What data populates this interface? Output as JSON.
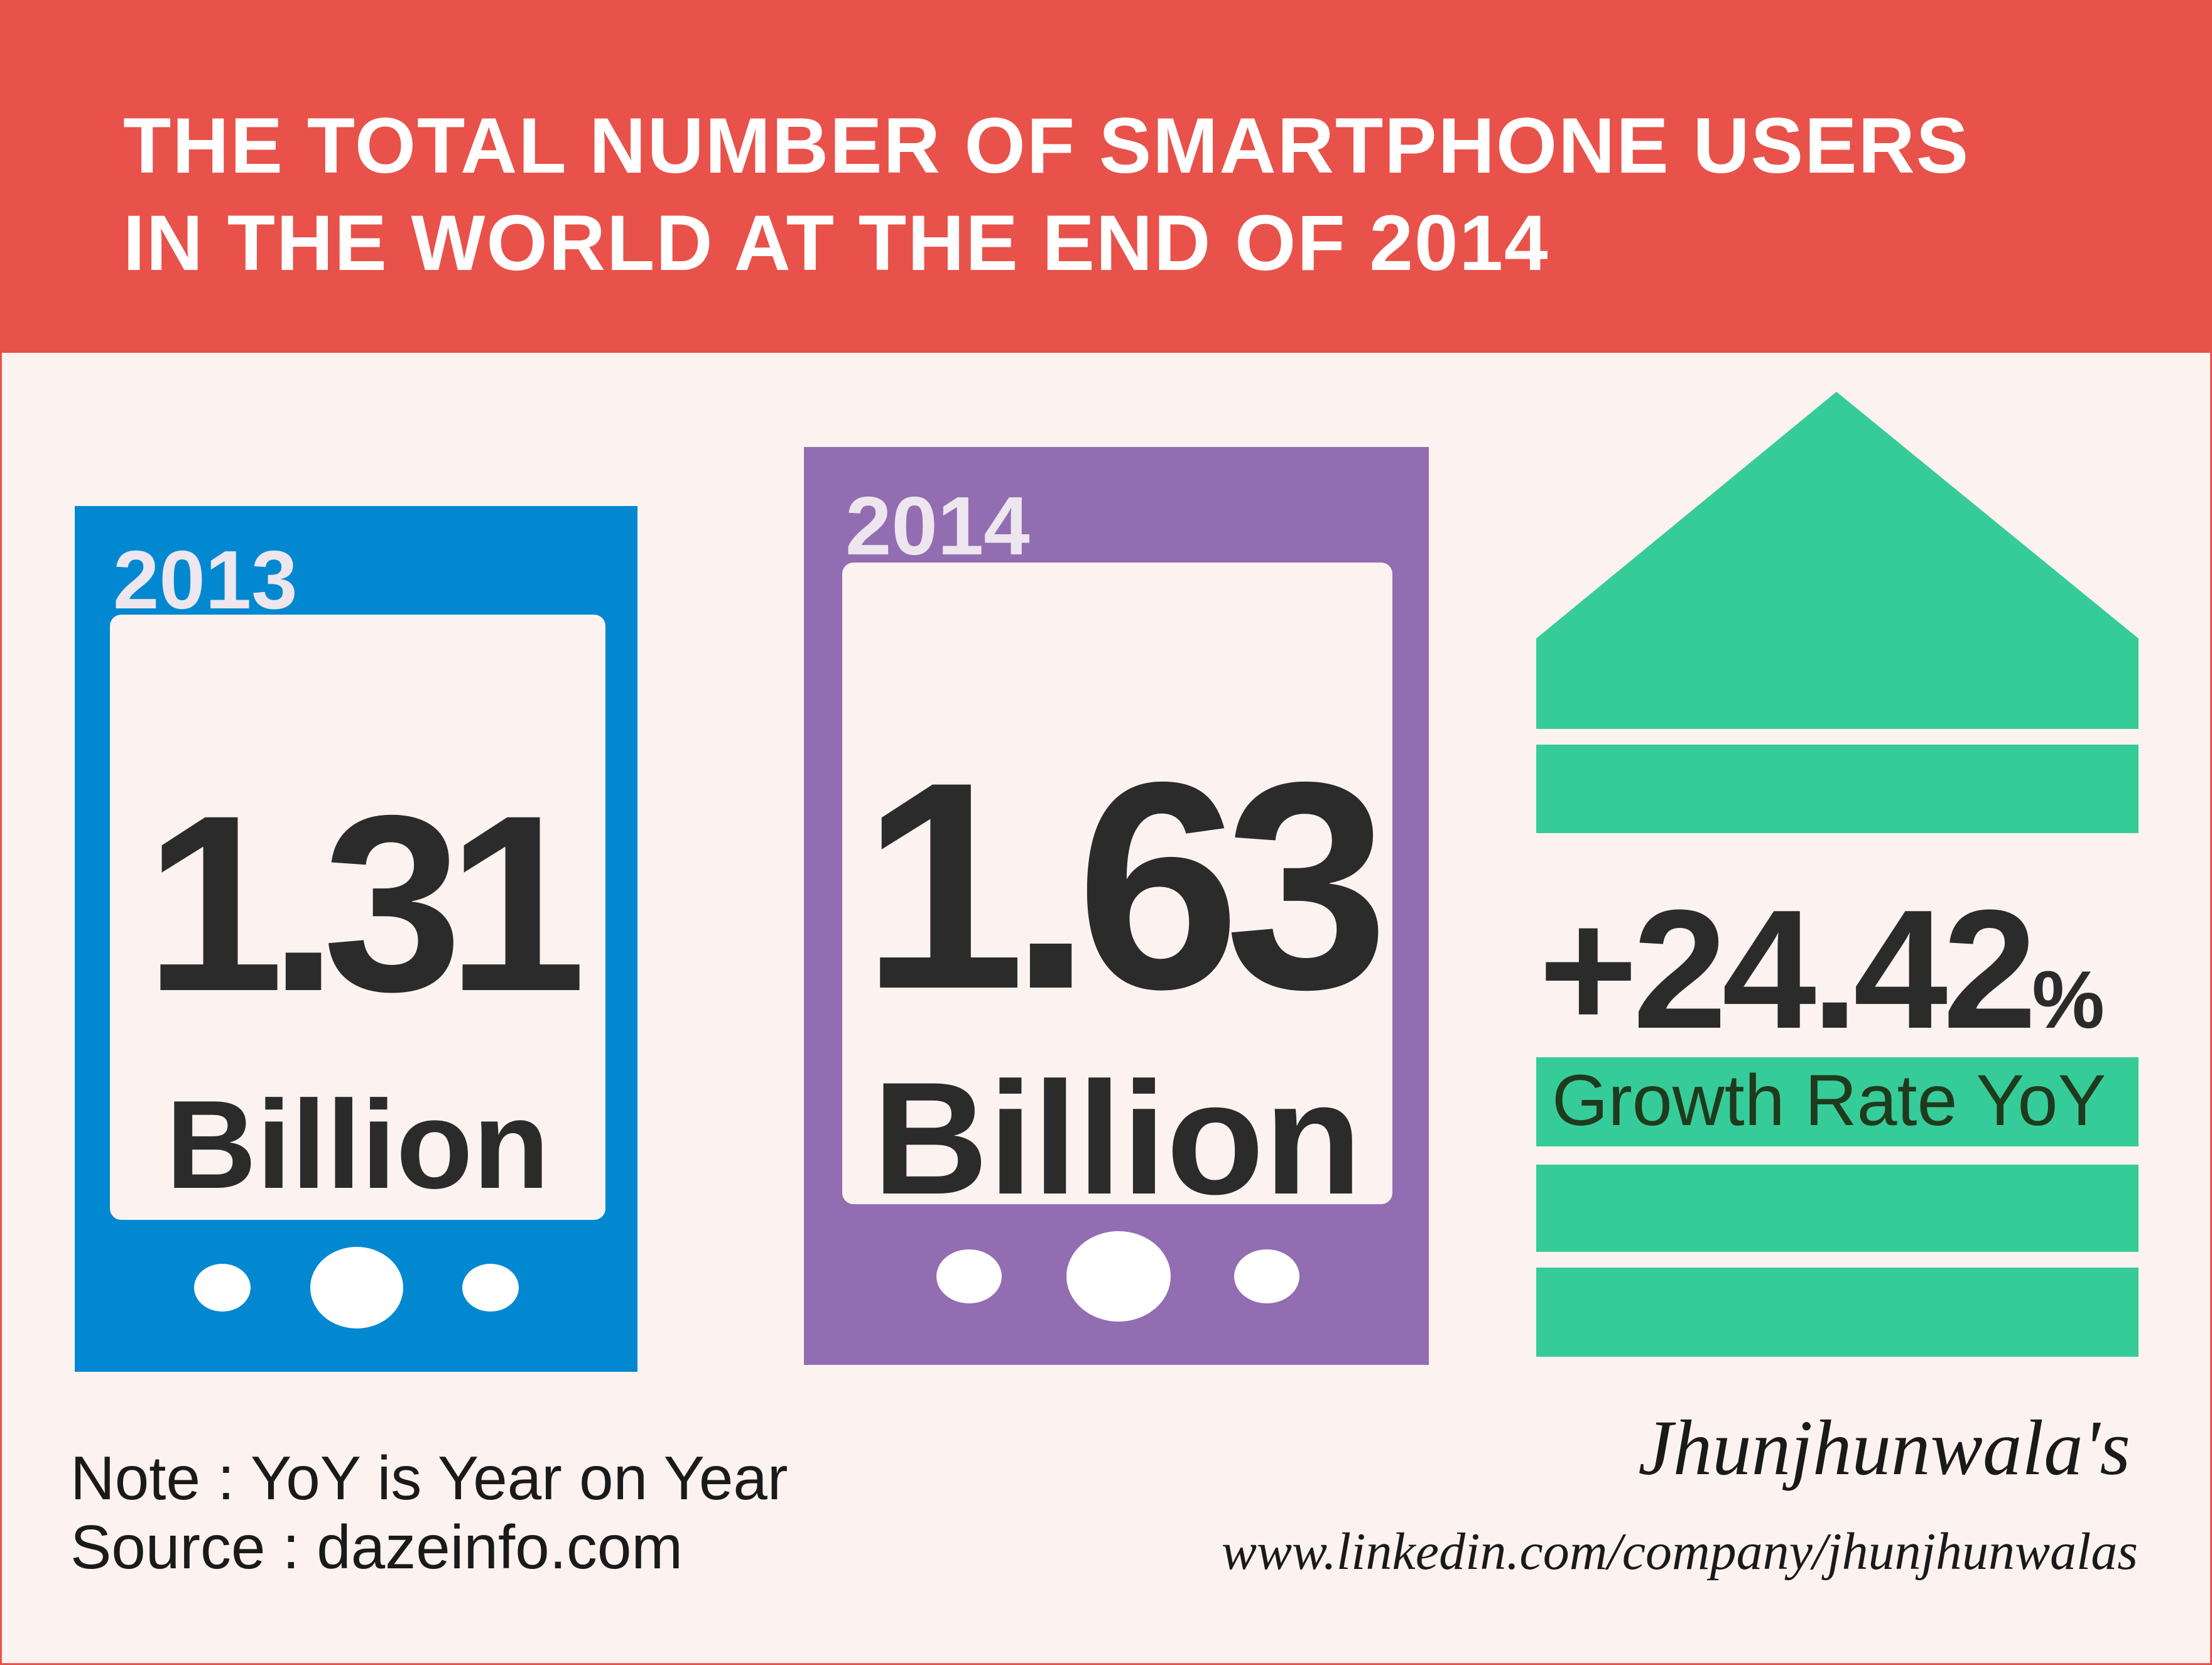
{
  "header": {
    "title_line1": "THE TOTAL NUMBER OF SMARTPHONE USERS",
    "title_line2": "IN THE WORLD AT THE END OF 2014"
  },
  "phones": [
    {
      "year": "2013",
      "value": "1.31",
      "unit": "Billion",
      "color": "#0288D1"
    },
    {
      "year": "2014",
      "value": "1.63",
      "unit": "Billion",
      "color": "#936DB2"
    }
  ],
  "growth": {
    "value": "+24.42",
    "percent_sign": "%",
    "label": "Growth Rate YoY",
    "color": "#36CC99"
  },
  "footer": {
    "note": "Note : YoY is Year on Year",
    "source": "Source : dazeinfo.com",
    "brand": "Jhunjhunwala's",
    "url": "www.linkedin.com/company/jhunjhunwalas"
  },
  "colors": {
    "header": "#E8524A",
    "background": "#FCF3F0"
  }
}
